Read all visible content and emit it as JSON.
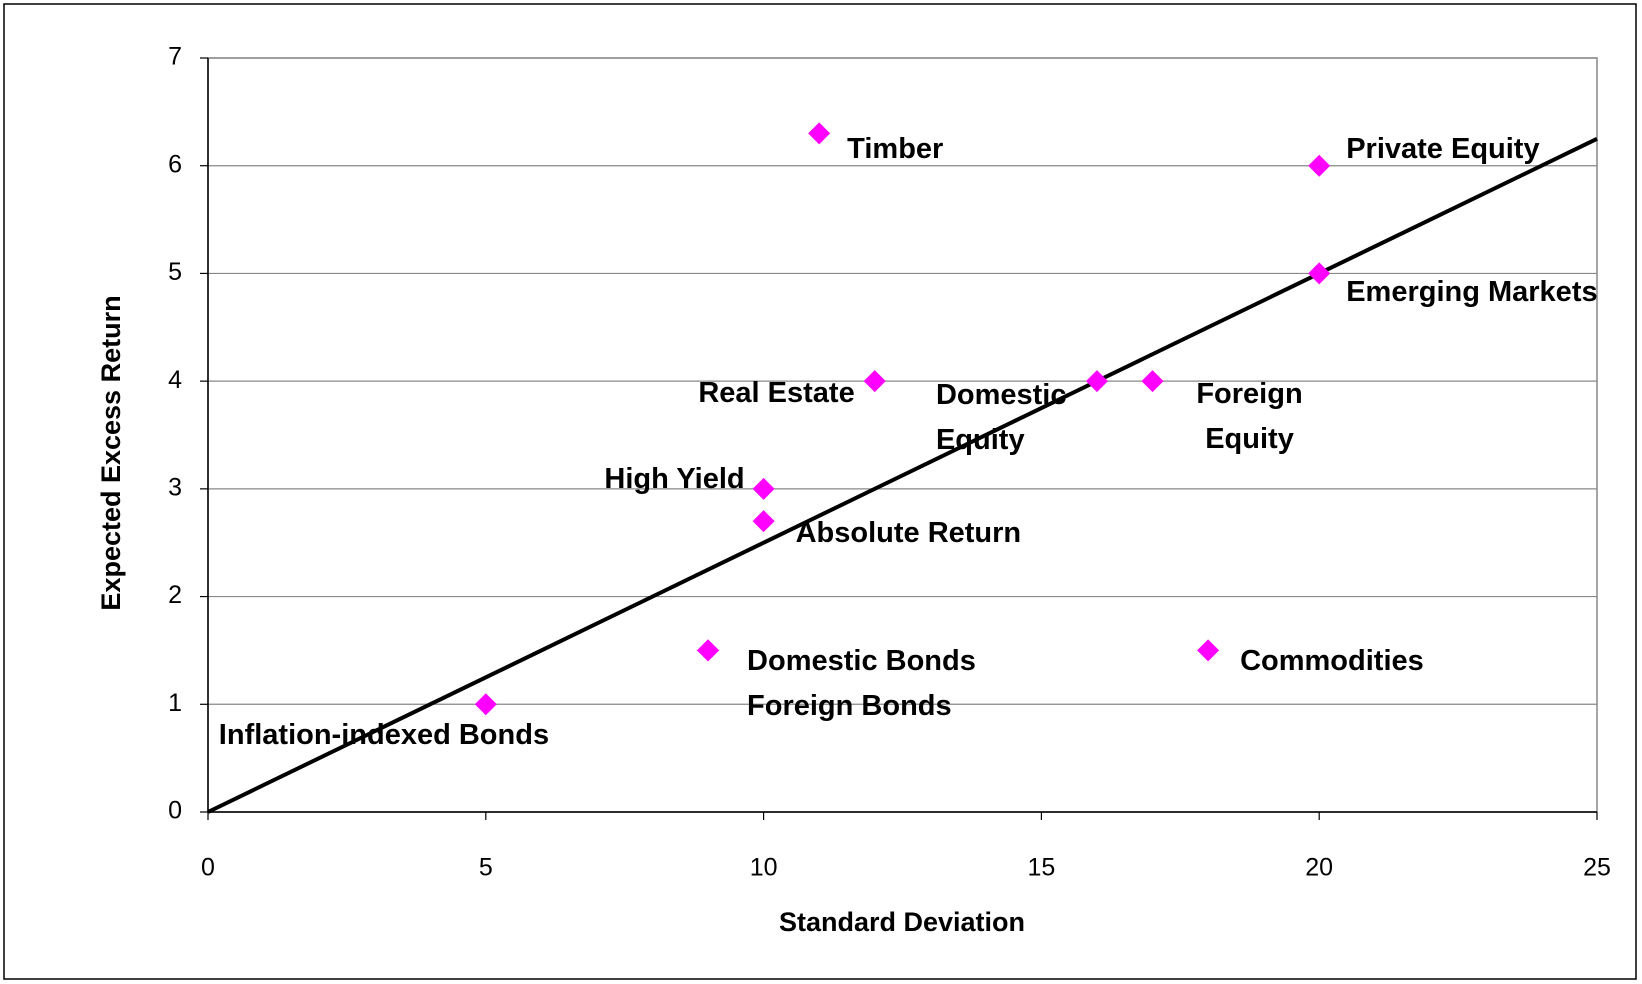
{
  "chart_data": {
    "type": "scatter",
    "x_label": "Standard Deviation",
    "y_label": "Expected Excess Return",
    "labels": [
      "Timber",
      "Private Equity",
      "Emerging Markets",
      "Real Estate",
      "Domestic Equity",
      "Foreign Equity",
      "High Yield",
      "Absolute Return",
      "Domestic Bonds",
      "Foreign Bonds",
      "Commodities",
      "Inflation-indexed Bonds"
    ],
    "x": [
      11,
      20,
      20,
      12,
      16,
      17,
      10,
      10,
      9,
      9,
      18,
      5
    ],
    "y": [
      6.3,
      6,
      5,
      4,
      4,
      4,
      3,
      2.7,
      1.5,
      1.5,
      1.5,
      1
    ],
    "color": "#ff00ff",
    "line": {
      "x": [
        0,
        25
      ],
      "y": [
        0,
        6.25
      ],
      "color": "#000000"
    },
    "xlim": [
      0,
      25
    ],
    "xticks": [
      0,
      5,
      10,
      15,
      20,
      25
    ],
    "ylim": [
      0,
      7
    ],
    "yticks": [
      0,
      1,
      2,
      3,
      4,
      5,
      6,
      7
    ],
    "grid": true
  }
}
